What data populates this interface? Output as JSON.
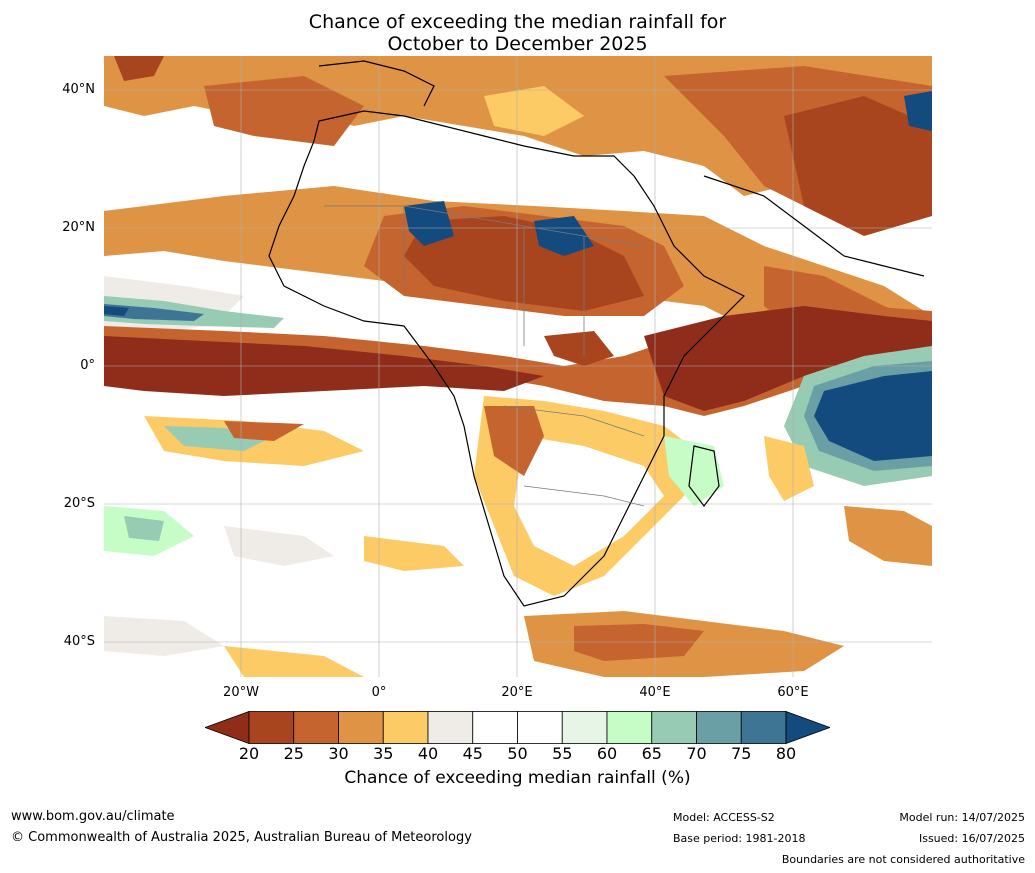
{
  "title": {
    "line1": "Chance of exceeding the median rainfall for",
    "line2": "October to December 2025"
  },
  "axes": {
    "lat_labels": [
      "40°N",
      "20°N",
      "0°",
      "20°S",
      "40°S"
    ],
    "lon_labels": [
      "20°W",
      "0°",
      "20°E",
      "40°E",
      "60°E"
    ]
  },
  "colorbar": {
    "label": "Chance of exceeding median rainfall (%)",
    "ticks": [
      "20",
      "25",
      "30",
      "35",
      "40",
      "45",
      "50",
      "55",
      "60",
      "65",
      "70",
      "75",
      "80"
    ],
    "colors": [
      "#8f2d1a",
      "#a8451f",
      "#c5642f",
      "#df9344",
      "#fccb66",
      "#efebe7",
      "#ffffff",
      "#ffffff",
      "#e6f5e6",
      "#c6fcc6",
      "#98cbb4",
      "#6b9fa6",
      "#3f7594",
      "#134b7f"
    ]
  },
  "footer": {
    "url": "www.bom.gov.au/climate",
    "copyright": "© Commonwealth of Australia 2025, Australian Bureau of Meteorology",
    "model": "Model: ACCESS-S2",
    "base_period": "Base period: 1981-2018",
    "model_run": "Model run: 14/07/2025",
    "issued": "Issued: 16/07/2025",
    "disclaimer": "Boundaries are not considered authoritative"
  },
  "map_colors": {
    "very_dry": "#8f2d1a",
    "dry": "#a8451f",
    "mod_dry": "#c5642f",
    "light_dry": "#df9344",
    "slight_dry": "#fccb66",
    "neutral_low": "#efebe7",
    "neutral": "#ffffff",
    "slight_wet": "#e6f5e6",
    "light_wet": "#c6fcc6",
    "mod_wet": "#98cbb4",
    "wet": "#6b9fa6",
    "very_wet": "#134b7f"
  }
}
